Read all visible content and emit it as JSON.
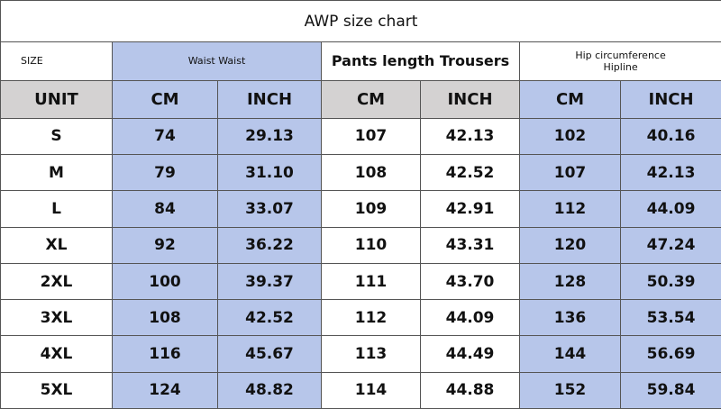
{
  "title": "AWP size chart",
  "header": {
    "size": "SIZE",
    "waist": "Waist Waist",
    "pants": "Pants length Trousers",
    "hip": [
      "Hip circumference",
      "Hipline"
    ]
  },
  "units": [
    "UNIT",
    "CM",
    "INCH",
    "CM",
    "INCH",
    "CM",
    "INCH"
  ],
  "rows": [
    [
      "S",
      "74",
      "29.13",
      "107",
      "42.13",
      "102",
      "40.16"
    ],
    [
      "M",
      "79",
      "31.10",
      "108",
      "42.52",
      "107",
      "42.13"
    ],
    [
      "L",
      "84",
      "33.07",
      "109",
      "42.91",
      "112",
      "44.09"
    ],
    [
      "XL",
      "92",
      "36.22",
      "110",
      "43.31",
      "120",
      "47.24"
    ],
    [
      "2XL",
      "100",
      "39.37",
      "111",
      "43.70",
      "128",
      "50.39"
    ],
    [
      "3XL",
      "108",
      "42.52",
      "112",
      "44.09",
      "136",
      "53.54"
    ],
    [
      "4XL",
      "116",
      "45.67",
      "113",
      "44.49",
      "144",
      "56.69"
    ],
    [
      "5XL",
      "124",
      "48.82",
      "114",
      "44.88",
      "152",
      "59.84"
    ]
  ]
}
